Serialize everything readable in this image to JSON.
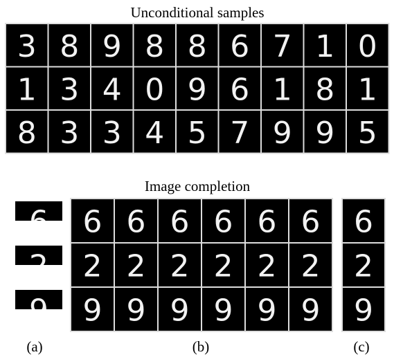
{
  "unconditional": {
    "title": "Unconditional samples",
    "rows": [
      [
        "3",
        "8",
        "9",
        "8",
        "8",
        "6",
        "7",
        "1",
        "0"
      ],
      [
        "1",
        "3",
        "4",
        "0",
        "9",
        "6",
        "1",
        "8",
        "1"
      ],
      [
        "8",
        "3",
        "3",
        "4",
        "5",
        "7",
        "9",
        "9",
        "5"
      ]
    ]
  },
  "completion": {
    "title": "Image completion",
    "rows": [
      {
        "partial": "6",
        "samples": [
          "6",
          "6",
          "6",
          "6",
          "6",
          "6"
        ],
        "original": "6"
      },
      {
        "partial": "2",
        "samples": [
          "2",
          "2",
          "2",
          "2",
          "2",
          "2"
        ],
        "original": "2"
      },
      {
        "partial": "9",
        "samples": [
          "9",
          "9",
          "9",
          "9",
          "9",
          "9"
        ],
        "original": "9"
      }
    ]
  },
  "labels": [
    "(a)",
    "(b)",
    "(c)"
  ]
}
